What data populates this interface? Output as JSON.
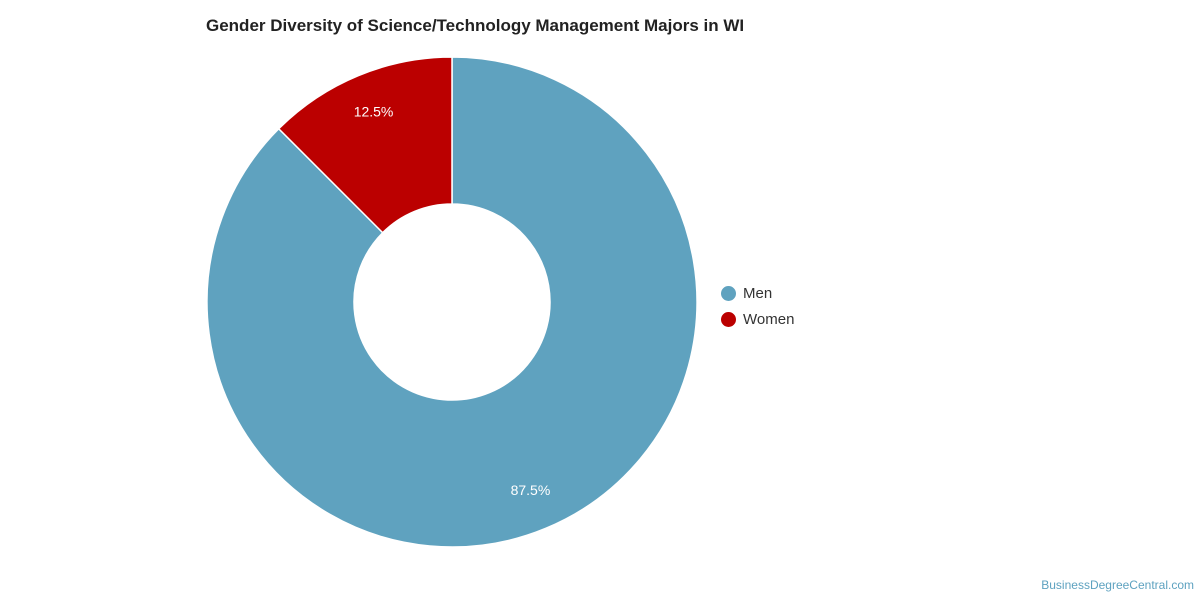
{
  "chart_data": {
    "type": "pie",
    "title": "Gender Diversity of Science/Technology Management Majors in WI",
    "donut": true,
    "slices": [
      {
        "label": "Men",
        "value": 87.5,
        "value_label": "87.5%",
        "color": "#5fa2bf"
      },
      {
        "label": "Women",
        "value": 12.5,
        "value_label": "12.5%",
        "color": "#bb0000"
      }
    ],
    "legend_position": "right",
    "grid": false
  },
  "credit": "BusinessDegreeCentral.com"
}
